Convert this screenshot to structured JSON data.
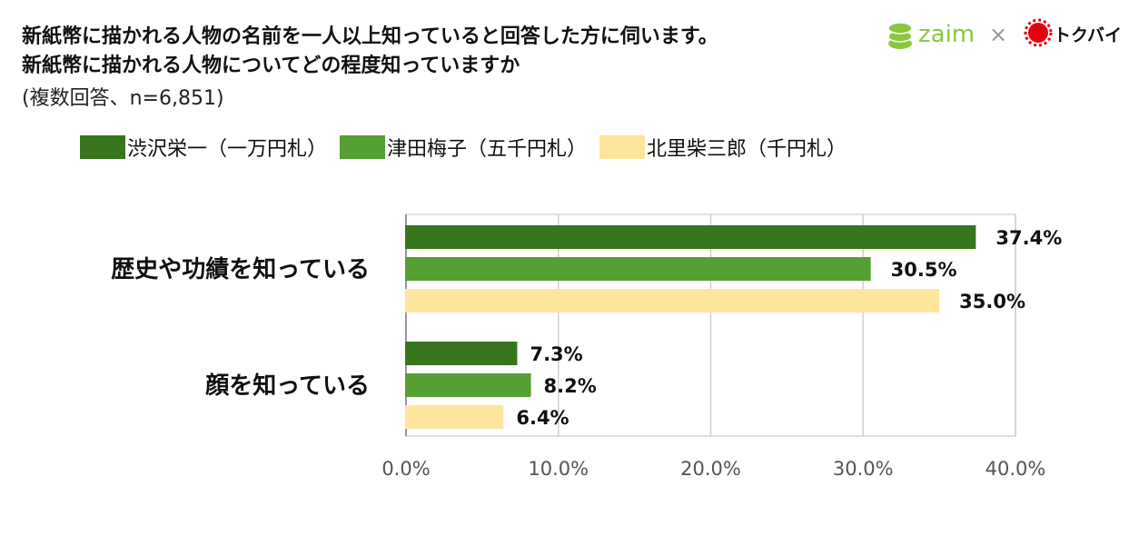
{
  "header": {
    "title_line1": "新紙幣に描かれる人物の名前を一人以上知っていると回答した方に伺います。",
    "title_line2": "新紙幣に描かれる人物についてどの程度知っていますか",
    "subtitle": "(複数回答、n=6,851)"
  },
  "logos": {
    "zaim_text": "zaim",
    "separator": "×",
    "tokubai_text": "トクバイ",
    "zaim_color": "#8cc63f",
    "tokubai_color": "#e60012"
  },
  "chart_data": {
    "type": "bar",
    "orientation": "horizontal",
    "categories": [
      "歴史や功績を知っている",
      "顔を知っている"
    ],
    "series": [
      {
        "name": "渋沢栄一（一万円札）",
        "color": "#38761d",
        "values": [
          37.4,
          7.3
        ],
        "labels": [
          "37.4%",
          "7.3%"
        ]
      },
      {
        "name": "津田梅子（五千円札）",
        "color": "#54a032",
        "values": [
          30.5,
          8.2
        ],
        "labels": [
          "30.5%",
          "8.2%"
        ]
      },
      {
        "name": "北里柴三郎（千円札）",
        "color": "#fde59d",
        "values": [
          35.0,
          6.4
        ],
        "labels": [
          "35.0%",
          "6.4%"
        ]
      }
    ],
    "xlim": [
      0,
      40
    ],
    "xticks": [
      0,
      10,
      20,
      30,
      40
    ],
    "xtick_labels": [
      "0.0%",
      "10.0%",
      "20.0%",
      "30.0%",
      "40.0%"
    ],
    "grid": true,
    "legend_position": "top"
  }
}
